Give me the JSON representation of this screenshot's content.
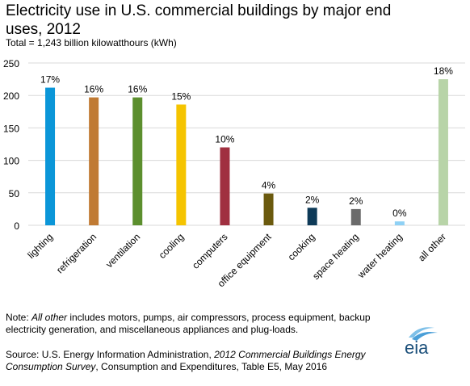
{
  "title": "Electricity use in U.S. commercial buildings by major end uses, 2012",
  "subtitle": "Total = 1,243 billion kilowatthours (kWh)",
  "note": {
    "prefix": "Note: ",
    "italic": "All other",
    "rest": " includes motors, pumps, air compressors, process equipment, backup electricity generation, and miscellaneous appliances and plug-loads."
  },
  "source": {
    "prefix": "Source: U.S. Energy Information Administration, ",
    "italic": "2012 Commercial Buildings Energy Consumption Survey",
    "rest": ", Consumption and Expenditures, Table E5, May 2016"
  },
  "logo": {
    "text": "eia",
    "icon": "eia-logo-icon",
    "colors": [
      "#1b4f7a",
      "#4a9fd8",
      "#7ec0e8"
    ]
  },
  "chart_data": {
    "type": "bar",
    "categories": [
      "lighting",
      "refrigeration",
      "ventilation",
      "cooling",
      "computers",
      "office equipment",
      "cooking",
      "space heating",
      "water heating",
      "all other"
    ],
    "values": [
      212,
      197,
      197,
      186,
      120,
      49,
      27,
      25,
      6,
      225
    ],
    "labels": [
      "17%",
      "16%",
      "16%",
      "15%",
      "10%",
      "4%",
      "2%",
      "2%",
      "0%",
      "18%"
    ],
    "colors": [
      "#0b96d8",
      "#c07a33",
      "#5c8f2e",
      "#f5c400",
      "#a03040",
      "#6b5a0e",
      "#0e3a58",
      "#6a6a6a",
      "#8fd1f5",
      "#b8d4a8"
    ],
    "yticks": [
      0,
      50,
      100,
      150,
      200,
      250
    ],
    "ylim": [
      0,
      250
    ],
    "grid": true,
    "xlabel": "",
    "ylabel": ""
  }
}
